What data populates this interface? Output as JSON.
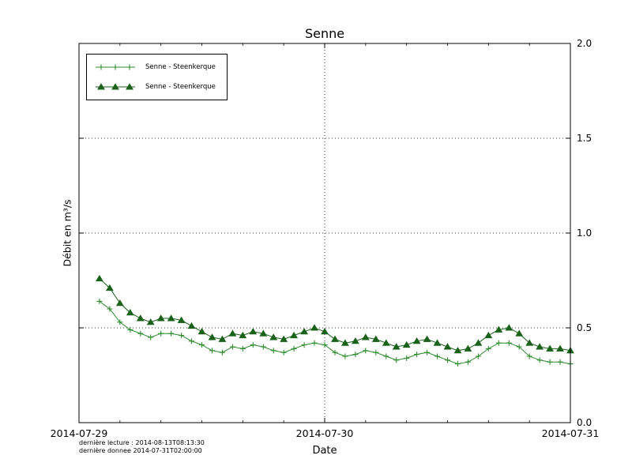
{
  "footer": {
    "line1": "dernière lecture : 2014-08-13T08:13:30",
    "line2": "dernière donnee  2014-07-31T02:00:00"
  },
  "chart_data": {
    "type": "line",
    "title": "Senne",
    "xlabel": "Date",
    "ylabel": "Débit en m³/s",
    "xlim_hours": [
      0,
      48
    ],
    "x_origin": "2014-07-29T00:00",
    "ylim": [
      0.0,
      2.0
    ],
    "ytick_side": "right",
    "yticks": [
      0.0,
      0.5,
      1.0,
      1.5,
      2.0
    ],
    "ytick_labels": [
      "0.0",
      "0.5",
      "1.0",
      "1.5",
      "2.0"
    ],
    "xticks_hours": [
      0,
      24,
      48
    ],
    "xtick_labels": [
      "2014-07-29",
      "2014-07-30",
      "2014-07-31"
    ],
    "xminor_step_hours": 4,
    "grid": {
      "style": "dotted",
      "y_at": [
        0.5,
        1.0,
        1.5
      ],
      "x_at_hours": [
        24
      ]
    },
    "legend_position": "upper left",
    "x_hours": [
      2,
      3,
      4,
      5,
      6,
      7,
      8,
      9,
      10,
      11,
      12,
      13,
      14,
      15,
      16,
      17,
      18,
      19,
      20,
      21,
      22,
      23,
      24,
      25,
      26,
      27,
      28,
      29,
      30,
      31,
      32,
      33,
      34,
      35,
      36,
      37,
      38,
      39,
      40,
      41,
      42,
      43,
      44,
      45,
      46,
      47,
      48
    ],
    "series": [
      {
        "name": "Senne - Steenkerque",
        "marker": "plus",
        "color": "#2e8b2e",
        "values": [
          0.64,
          0.6,
          0.53,
          0.49,
          0.47,
          0.45,
          0.47,
          0.47,
          0.46,
          0.43,
          0.41,
          0.38,
          0.37,
          0.4,
          0.39,
          0.41,
          0.4,
          0.38,
          0.37,
          0.39,
          0.41,
          0.42,
          0.41,
          0.37,
          0.35,
          0.36,
          0.38,
          0.37,
          0.35,
          0.33,
          0.34,
          0.36,
          0.37,
          0.35,
          0.33,
          0.31,
          0.32,
          0.35,
          0.39,
          0.42,
          0.42,
          0.4,
          0.35,
          0.33,
          0.32,
          0.32,
          0.31
        ]
      },
      {
        "name": "Senne - Steenkerque",
        "marker": "triangle",
        "color": "#1a621a",
        "values": [
          0.76,
          0.71,
          0.63,
          0.58,
          0.55,
          0.53,
          0.55,
          0.55,
          0.54,
          0.51,
          0.48,
          0.45,
          0.44,
          0.47,
          0.46,
          0.48,
          0.47,
          0.45,
          0.44,
          0.46,
          0.48,
          0.5,
          0.48,
          0.44,
          0.42,
          0.43,
          0.45,
          0.44,
          0.42,
          0.4,
          0.41,
          0.43,
          0.44,
          0.42,
          0.4,
          0.38,
          0.39,
          0.42,
          0.46,
          0.49,
          0.5,
          0.47,
          0.42,
          0.4,
          0.39,
          0.39,
          0.38
        ]
      }
    ]
  }
}
